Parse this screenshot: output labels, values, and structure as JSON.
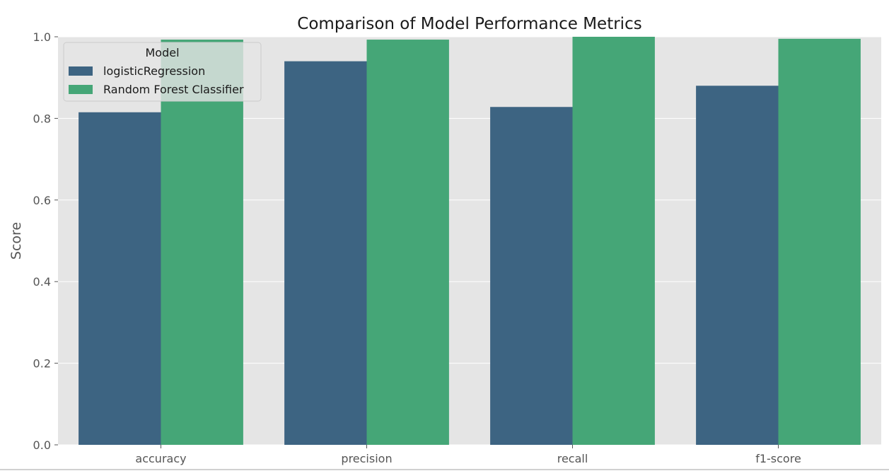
{
  "chart_data": {
    "type": "bar",
    "title": "Comparison of Model Performance Metrics",
    "xlabel": "",
    "ylabel": "Score",
    "ylim": [
      0,
      1.0
    ],
    "yticks": [
      "0.0",
      "0.2",
      "0.4",
      "0.6",
      "0.8",
      "1.0"
    ],
    "categories": [
      "accuracy",
      "precision",
      "recall",
      "f1-score"
    ],
    "grid": true,
    "legend": {
      "title": "Model",
      "placement": "top-left"
    },
    "series": [
      {
        "name": "logisticRegression",
        "color": "#3d6482",
        "values": [
          0.815,
          0.94,
          0.828,
          0.88
        ]
      },
      {
        "name": "Random Forest Classifier",
        "color": "#45a677",
        "values": [
          0.993,
          0.993,
          1.0,
          0.995
        ]
      }
    ]
  },
  "colors": {
    "plot_background": "#e5e5e5",
    "grid": "#ffffff"
  }
}
